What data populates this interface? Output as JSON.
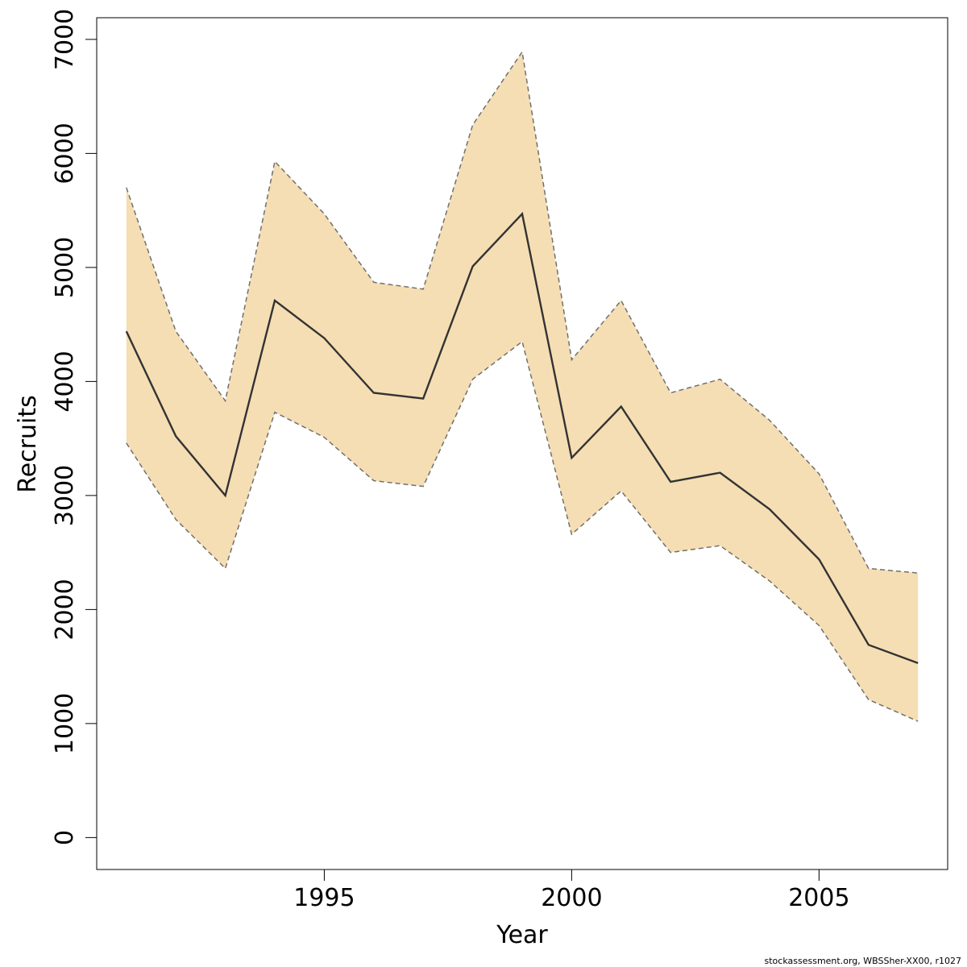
{
  "chart_data": {
    "type": "line",
    "title": "",
    "xlabel": "Year",
    "ylabel": "Recruits",
    "x": [
      1991,
      1992,
      1993,
      1994,
      1995,
      1996,
      1997,
      1998,
      1999,
      2000,
      2001,
      2002,
      2003,
      2004,
      2005,
      2006,
      2007
    ],
    "series": [
      {
        "values": [
          4440,
          3520,
          3000,
          4710,
          4380,
          3900,
          3850,
          5010,
          5470,
          3330,
          3780,
          3120,
          3200,
          2880,
          2440,
          1690,
          1530
        ]
      }
    ],
    "band": {
      "upper": [
        5700,
        4440,
        3830,
        5930,
        5470,
        4870,
        4810,
        6250,
        6890,
        4190,
        4710,
        3900,
        4020,
        3660,
        3190,
        2360,
        2320
      ],
      "lower": [
        3460,
        2790,
        2360,
        3730,
        3510,
        3130,
        3080,
        4020,
        4350,
        2660,
        3040,
        2500,
        2560,
        2250,
        1860,
        1210,
        1020
      ]
    },
    "xticks": [
      "1995",
      "2000",
      "2005"
    ],
    "yticks": [
      "0",
      "1000",
      "2000",
      "3000",
      "4000",
      "5000",
      "6000",
      "7000"
    ],
    "xlim": [
      1990.4,
      2007.6
    ],
    "ylim": [
      -280,
      7190
    ],
    "grid": false,
    "colors": {
      "band": "#f5deb3",
      "line": "#333333",
      "bound": "#707070"
    }
  },
  "footer": "stockassessment.org, WBSSher-XX00, r1027"
}
